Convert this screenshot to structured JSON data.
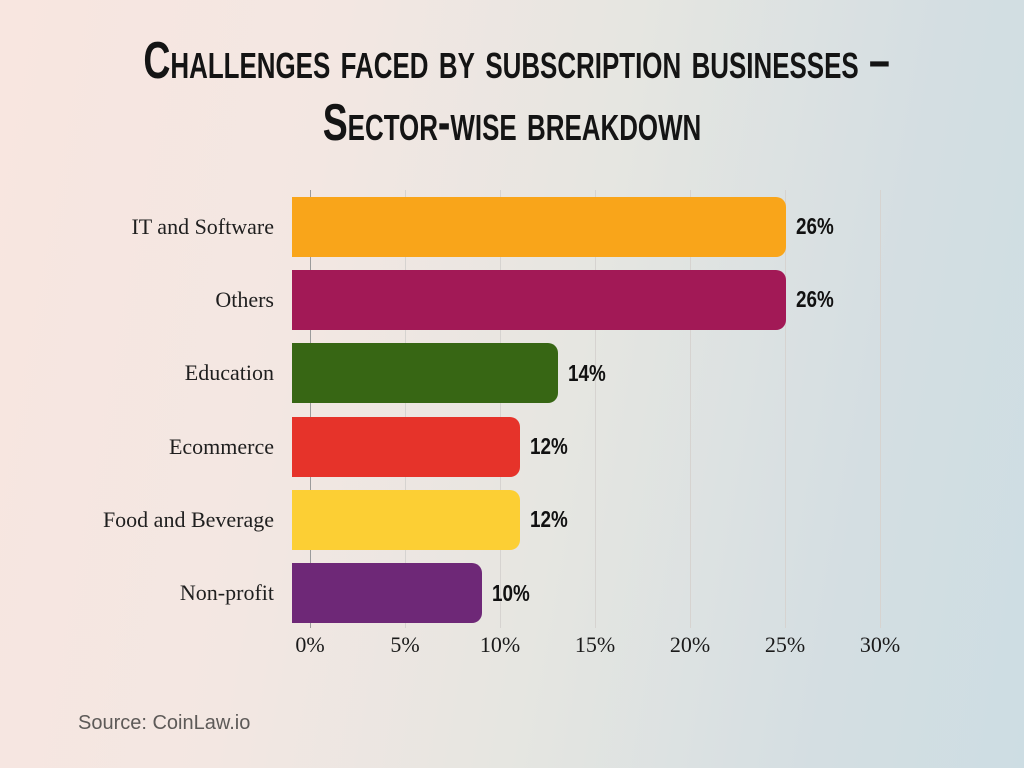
{
  "title": {
    "line1": "Challenges Faced by Subscription Businesses –",
    "line2": "Sector-wise Breakdown"
  },
  "source": "Source: CoinLaw.io",
  "chart_data": {
    "type": "bar",
    "orientation": "horizontal",
    "title": "Challenges Faced by Subscription Businesses – Sector-wise Breakdown",
    "categories": [
      "IT and Software",
      "Others",
      "Education",
      "Ecommerce",
      "Food and Beverage",
      "Non-profit"
    ],
    "values": [
      26,
      26,
      14,
      12,
      12,
      10
    ],
    "value_labels": [
      "26%",
      "26%",
      "14%",
      "12%",
      "12%",
      "10%"
    ],
    "bar_colors": [
      "#F9A51A",
      "#A21956",
      "#376614",
      "#E6332A",
      "#FCCF34",
      "#6E2877"
    ],
    "xlabel": "",
    "ylabel": "",
    "xlim": [
      0,
      30
    ],
    "x_tick_labels": [
      "0%",
      "5%",
      "10%",
      "15%",
      "20%",
      "25%",
      "30%"
    ],
    "grid": "vertical",
    "legend": "none"
  }
}
